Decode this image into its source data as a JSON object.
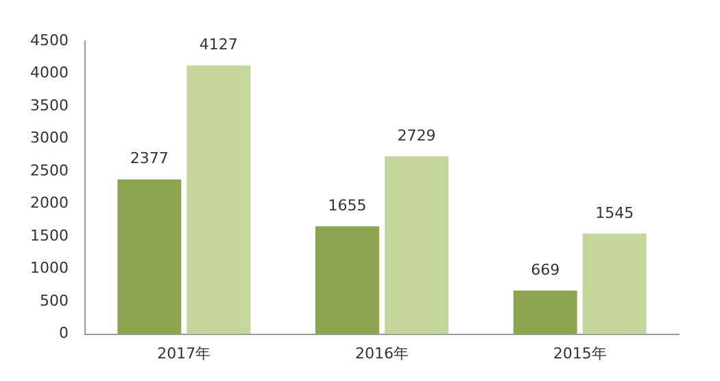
{
  "chart_data": {
    "type": "bar",
    "categories": [
      "2017年",
      "2016年",
      "2015年"
    ],
    "series": [
      {
        "color": "#8aa450",
        "values": [
          2377,
          1655,
          669
        ]
      },
      {
        "color": "#c3d69b",
        "values": [
          4127,
          2729,
          1545
        ]
      }
    ],
    "ylim": [
      0,
      4500
    ],
    "yticks": [
      0,
      500,
      1000,
      1500,
      2000,
      2500,
      3000,
      3500,
      4000,
      4500
    ],
    "grid": false,
    "legend": false,
    "data_labels": true
  }
}
